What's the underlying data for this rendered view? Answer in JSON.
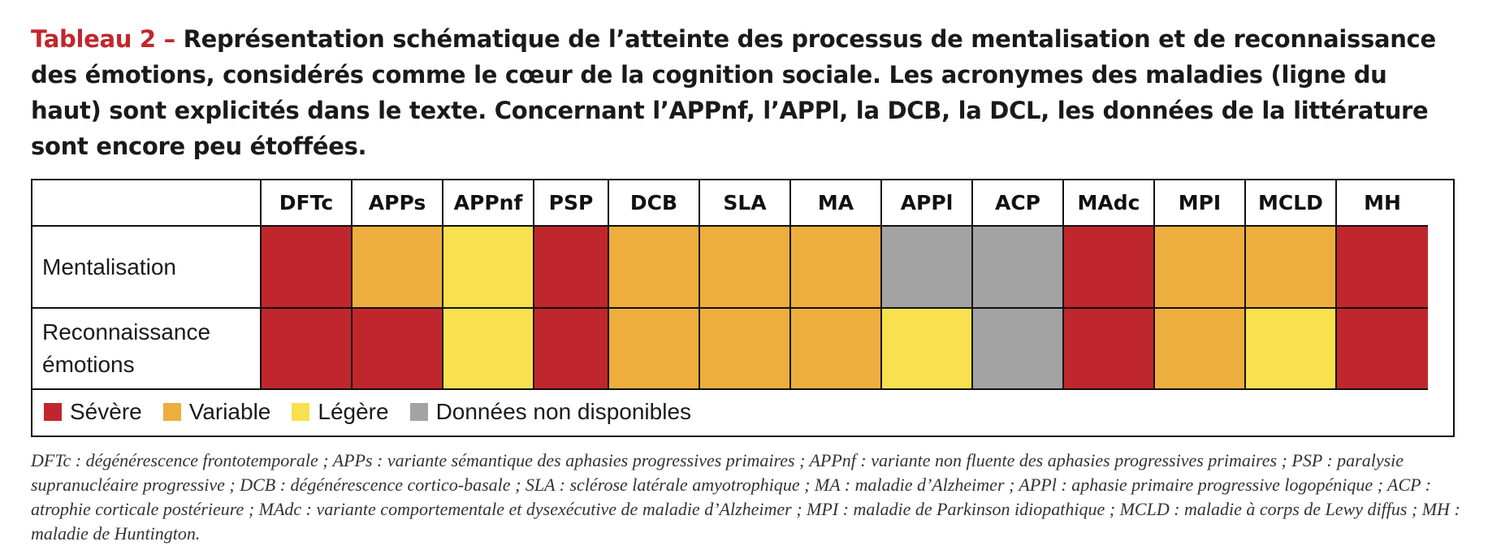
{
  "caption": {
    "label": "Tableau 2 –",
    "text": " Représentation schématique de l’atteinte des processus de mentalisation et de reconnaissance des émotions, considérés comme le cœur de la cognition sociale. Les acronymes des maladies (ligne du haut) sont explicités dans le texte. Concernant l’APPnf, l’APPl, la DCB, la DCL, les données de la littérature sont encore peu étoffées."
  },
  "colors": {
    "severe": "#c0272d",
    "variable": "#eeae3e",
    "legere": "#f9e04f",
    "nd": "#a3a3a3",
    "caption_label": "#c0272d"
  },
  "table": {
    "columns": [
      "DFTc",
      "APPs",
      "APPnf",
      "PSP",
      "DCB",
      "SLA",
      "MA",
      "APPl",
      "ACP",
      "MAdc",
      "MPI",
      "MCLD",
      "MH"
    ],
    "rows": [
      {
        "label": "Mentalisation",
        "levels": [
          "severe",
          "variable",
          "legere",
          "severe",
          "variable",
          "variable",
          "variable",
          "nd",
          "nd",
          "severe",
          "variable",
          "variable",
          "severe"
        ]
      },
      {
        "label": "Reconnaissance émotions",
        "levels": [
          "severe",
          "severe",
          "legere",
          "severe",
          "variable",
          "variable",
          "variable",
          "legere",
          "nd",
          "severe",
          "variable",
          "legere",
          "severe"
        ]
      }
    ]
  },
  "legend": {
    "severe": "Sévère",
    "variable": "Variable",
    "legere": "Légère",
    "nd": "Données non disponibles"
  },
  "footnote": "DFTc : dégénérescence frontotemporale ; APPs : variante sémantique des aphasies progressives primaires ; APPnf : variante non fluente des aphasies progressives primaires ; PSP : paralysie supranucléaire progressive ; DCB : dégénérescence cortico-basale ; SLA : sclérose latérale amyotrophique ; MA : maladie d’Alzheimer ; APPl : aphasie primaire progressive logopénique ; ACP : atrophie corticale postérieure ; MAdc : variante comportementale et dysexécutive de maladie d’Alzheimer ; MPI : maladie de Parkinson idiopathique ; MCLD : maladie à corps de Lewy diffus ; MH : maladie de Huntington."
}
